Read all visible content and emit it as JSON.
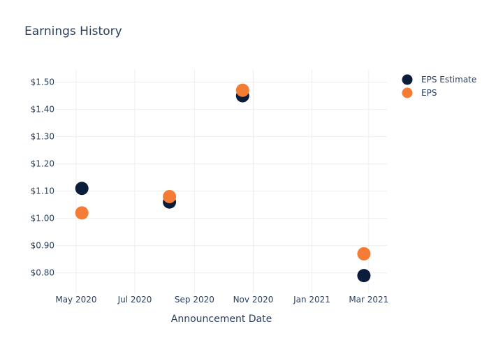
{
  "chart_data": {
    "type": "scatter",
    "title": "Earnings History",
    "xlabel": "Announcement Date",
    "ylabel": "",
    "x_ticks": [
      {
        "date": "2020-05-01",
        "label": "May 2020"
      },
      {
        "date": "2020-07-01",
        "label": "Jul 2020"
      },
      {
        "date": "2020-09-01",
        "label": "Sep 2020"
      },
      {
        "date": "2020-11-01",
        "label": "Nov 2020"
      },
      {
        "date": "2021-01-01",
        "label": "Jan 2021"
      },
      {
        "date": "2021-03-01",
        "label": "Mar 2021"
      }
    ],
    "xlim": [
      "2020-04-10",
      "2021-03-20"
    ],
    "y_ticks": [
      {
        "value": 0.8,
        "label": "$0.80"
      },
      {
        "value": 0.9,
        "label": "$0.90"
      },
      {
        "value": 1.0,
        "label": "$1.00"
      },
      {
        "value": 1.1,
        "label": "$1.10"
      },
      {
        "value": 1.2,
        "label": "$1.20"
      },
      {
        "value": 1.3,
        "label": "$1.30"
      },
      {
        "value": 1.4,
        "label": "$1.40"
      },
      {
        "value": 1.5,
        "label": "$1.50"
      }
    ],
    "ylim": [
      0.725,
      1.545
    ],
    "grid": true,
    "legend_position": "top-right",
    "series": [
      {
        "name": "EPS Estimate",
        "color": "#0b1d3a",
        "points": [
          {
            "x": "2020-05-07",
            "y": 1.11
          },
          {
            "x": "2020-08-06",
            "y": 1.06
          },
          {
            "x": "2020-10-21",
            "y": 1.45
          },
          {
            "x": "2021-02-24",
            "y": 0.79
          }
        ]
      },
      {
        "name": "EPS",
        "color": "#f47c35",
        "points": [
          {
            "x": "2020-05-07",
            "y": 1.02
          },
          {
            "x": "2020-08-06",
            "y": 1.08
          },
          {
            "x": "2020-10-21",
            "y": 1.47
          },
          {
            "x": "2021-02-24",
            "y": 0.87
          }
        ]
      }
    ]
  }
}
